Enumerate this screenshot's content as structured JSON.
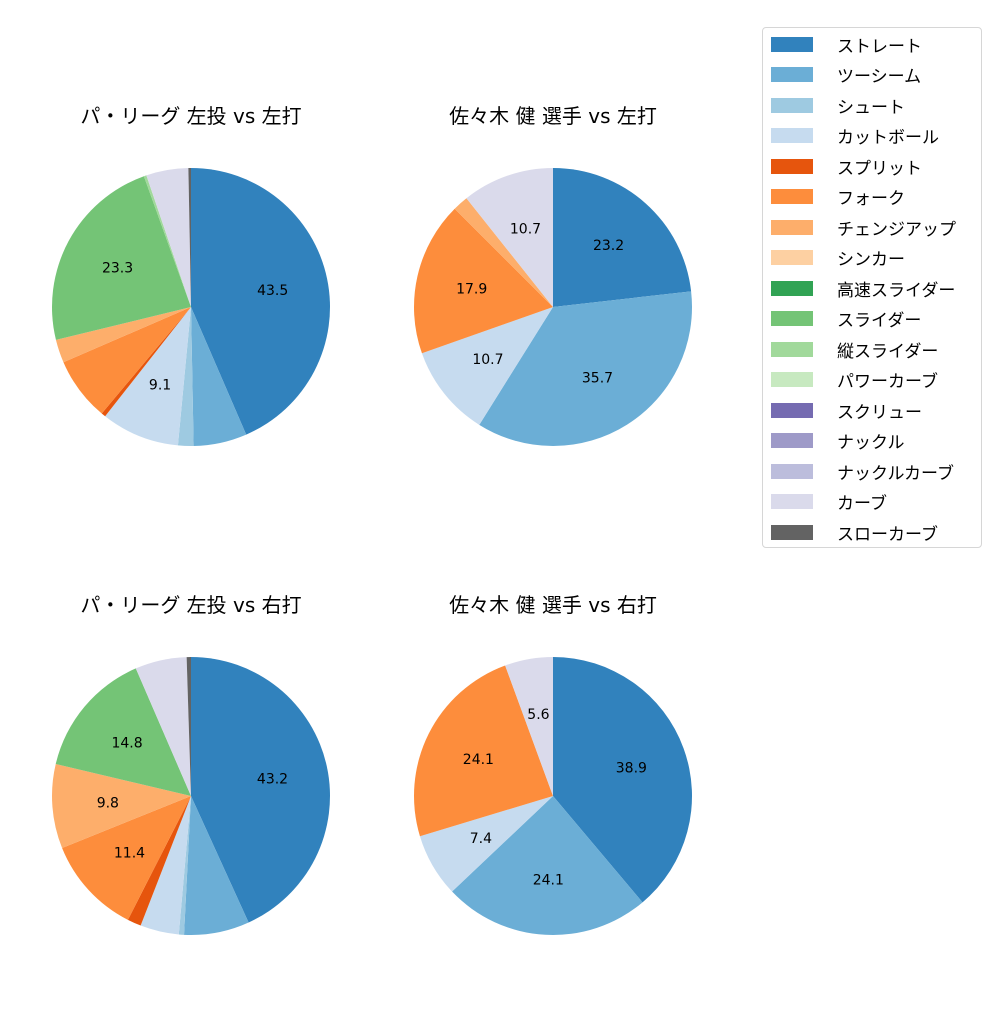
{
  "legend": {
    "items": [
      {
        "label": "ストレート",
        "color": "#3182bd"
      },
      {
        "label": "ツーシーム",
        "color": "#6baed6"
      },
      {
        "label": "シュート",
        "color": "#9ecae1"
      },
      {
        "label": "カットボール",
        "color": "#c6dbef"
      },
      {
        "label": "スプリット",
        "color": "#e6550d"
      },
      {
        "label": "フォーク",
        "color": "#fd8d3c"
      },
      {
        "label": "チェンジアップ",
        "color": "#fdae6b"
      },
      {
        "label": "シンカー",
        "color": "#fdd0a2"
      },
      {
        "label": "高速スライダー",
        "color": "#31a354"
      },
      {
        "label": "スライダー",
        "color": "#74c476"
      },
      {
        "label": "縦スライダー",
        "color": "#a1d99b"
      },
      {
        "label": "パワーカーブ",
        "color": "#c7e9c0"
      },
      {
        "label": "スクリュー",
        "color": "#756bb1"
      },
      {
        "label": "ナックル",
        "color": "#9e9ac8"
      },
      {
        "label": "ナックルカーブ",
        "color": "#bcbddc"
      },
      {
        "label": "カーブ",
        "color": "#dadaeb"
      },
      {
        "label": "スローカーブ",
        "color": "#636363"
      }
    ]
  },
  "chart_data": [
    {
      "type": "pie",
      "title": "パ・リーグ 左投 vs 左打",
      "categories": [
        "ストレート",
        "ツーシーム",
        "シュート",
        "カットボール",
        "スプリット",
        "フォーク",
        "チェンジアップ",
        "スライダー",
        "縦スライダー",
        "カーブ",
        "スローカーブ"
      ],
      "values": [
        43.5,
        6.2,
        1.8,
        9.1,
        0.5,
        7.4,
        2.7,
        23.3,
        0.3,
        4.9,
        0.3
      ],
      "labels_shown": [
        "43.5",
        "",
        "",
        "9.1",
        "",
        "",
        "",
        "23.3",
        "",
        "",
        ""
      ],
      "start_angle": 90,
      "direction": "clockwise"
    },
    {
      "type": "pie",
      "title": "佐々木 健 選手 vs 左打",
      "categories": [
        "ストレート",
        "ツーシーム",
        "カットボール",
        "フォーク",
        "チェンジアップ",
        "カーブ"
      ],
      "values": [
        23.2,
        35.7,
        10.7,
        17.9,
        1.8,
        10.7
      ],
      "labels_shown": [
        "23.2",
        "35.7",
        "10.7",
        "17.9",
        "",
        "10.7"
      ],
      "start_angle": 90,
      "direction": "clockwise"
    },
    {
      "type": "pie",
      "title": "パ・リーグ 左投 vs 右打",
      "categories": [
        "ストレート",
        "ツーシーム",
        "シュート",
        "カットボール",
        "スプリット",
        "フォーク",
        "チェンジアップ",
        "スライダー",
        "カーブ",
        "スローカーブ"
      ],
      "values": [
        43.2,
        7.6,
        0.6,
        4.5,
        1.6,
        11.4,
        9.8,
        14.8,
        6.0,
        0.5
      ],
      "labels_shown": [
        "43.2",
        "",
        "",
        "",
        "",
        "11.4",
        "9.8",
        "14.8",
        "",
        ""
      ],
      "start_angle": 90,
      "direction": "clockwise"
    },
    {
      "type": "pie",
      "title": "佐々木 健 選手 vs 右打",
      "categories": [
        "ストレート",
        "ツーシーム",
        "カットボール",
        "フォーク",
        "カーブ"
      ],
      "values": [
        38.9,
        24.1,
        7.4,
        24.1,
        5.6
      ],
      "labels_shown": [
        "38.9",
        "24.1",
        "7.4",
        "24.1",
        "5.6"
      ],
      "start_angle": 90,
      "direction": "clockwise"
    }
  ]
}
